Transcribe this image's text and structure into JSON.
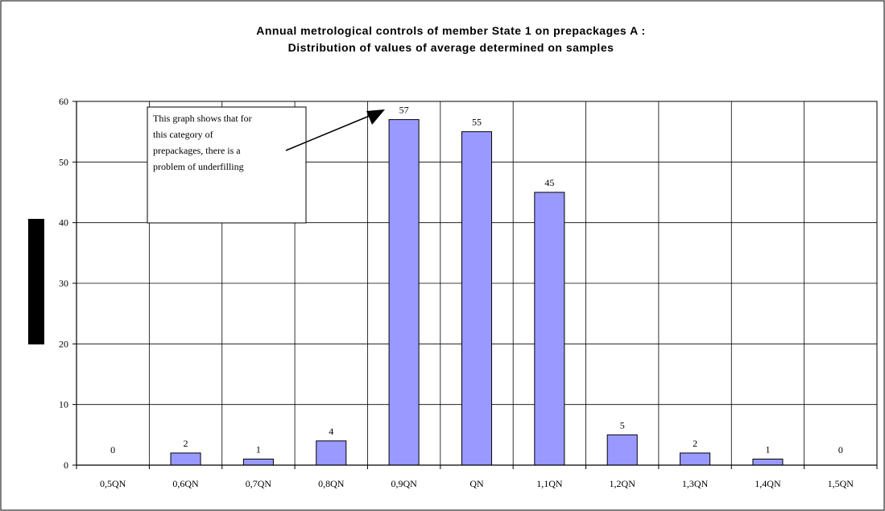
{
  "chart_data": {
    "type": "bar",
    "title_line1": "Annual metrological controls of member State 1 on prepackages A :",
    "title_line2": "Distribution of values of average determined on samples",
    "xlabel": "",
    "ylabel": "",
    "categories": [
      "0,5QN",
      "0,6QN",
      "0,7QN",
      "0,8QN",
      "0,9QN",
      "QN",
      "1,1QN",
      "1,2QN",
      "1,3QN",
      "1,4QN",
      "1,5QN"
    ],
    "values": [
      0,
      2,
      1,
      4,
      57,
      55,
      45,
      5,
      2,
      1,
      0
    ],
    "ylim": [
      0,
      60
    ],
    "yticks": [
      0,
      10,
      20,
      30,
      40,
      50,
      60
    ],
    "grid": true,
    "legend": "none",
    "bar_color": "#9999FF",
    "annotation": {
      "text": "This graph shows that for this category of prepackages, there is a problem of underfilling",
      "lines": [
        "This graph shows that for",
        "this category of",
        "prepackages, there is a",
        "problem of underfilling"
      ],
      "points_to": "0,9QN"
    }
  }
}
